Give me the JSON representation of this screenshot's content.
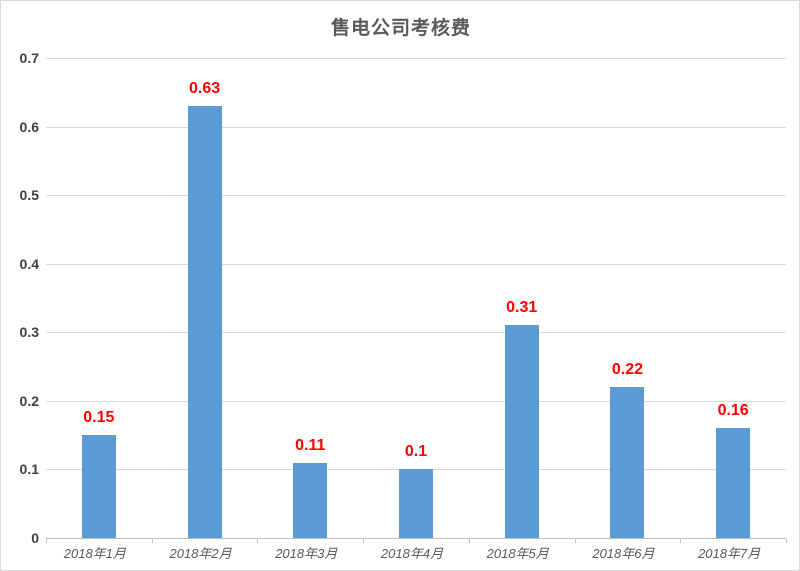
{
  "chart_data": {
    "type": "bar",
    "title": "售电公司考核费",
    "categories": [
      "2018年1月",
      "2018年2月",
      "2018年3月",
      "2018年4月",
      "2018年5月",
      "2018年6月",
      "2018年7月"
    ],
    "values": [
      0.15,
      0.63,
      0.11,
      0.1,
      0.31,
      0.22,
      0.16
    ],
    "data_labels": [
      "0.15",
      "0.63",
      "0.11",
      "0.1",
      "0.31",
      "0.22",
      "0.16"
    ],
    "xlabel": "",
    "ylabel": "",
    "ylim": [
      0,
      0.7
    ],
    "yticks": [
      0,
      0.1,
      0.2,
      0.3,
      0.4,
      0.5,
      0.6,
      0.7
    ],
    "ytick_labels": [
      "0",
      "0.1",
      "0.2",
      "0.3",
      "0.4",
      "0.5",
      "0.6",
      "0.7"
    ],
    "grid": true,
    "legend": false,
    "colors": {
      "bar": "#5b9bd5",
      "data_label": "#ff0000",
      "title": "#595959",
      "ytick_label": "#404040",
      "xtick_label": "#595959",
      "gridline": "#d9d9d9",
      "axis_line": "#bfbfbf",
      "background": "#ffffff",
      "border": "#d9d9d9"
    }
  }
}
